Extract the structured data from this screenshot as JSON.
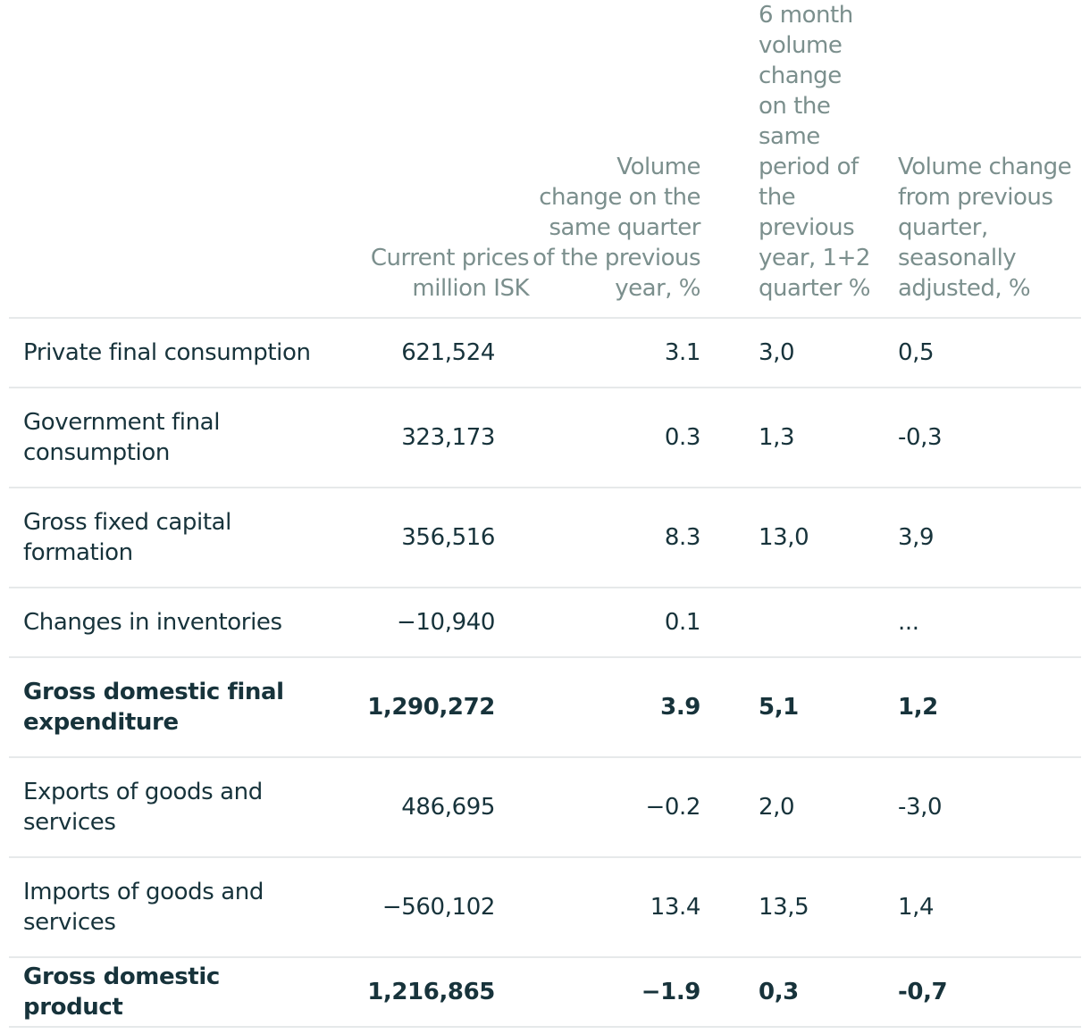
{
  "table": {
    "headers": [
      "",
      "Current prices million ISK",
      "Volume change on the same quarter of the previous year, %",
      "6 month volume change on the same period of the previous year, 1+2 quarter %",
      "Volume change from previous quarter, seasonally adjusted, %"
    ],
    "rows": [
      {
        "label": "Private final consumption",
        "current": "621,524",
        "yoy": "3.1",
        "six_month": "3,0",
        "qoq": "0,5",
        "bold": false
      },
      {
        "label": "Government final consumption",
        "current": "323,173",
        "yoy": "0.3",
        "six_month": "1,3",
        "qoq": "-0,3",
        "bold": false
      },
      {
        "label": "Gross fixed capital formation",
        "current": "356,516",
        "yoy": "8.3",
        "six_month": "13,0",
        "qoq": "3,9",
        "bold": false
      },
      {
        "label": "Changes in inventories",
        "current": "−10,940",
        "yoy": "0.1",
        "six_month": "",
        "qoq": "...",
        "bold": false
      },
      {
        "label": "Gross domestic final expenditure",
        "current": "1,290,272",
        "yoy": "3.9",
        "six_month": "5,1",
        "qoq": "1,2",
        "bold": true
      },
      {
        "label": "Exports of goods and services",
        "current": "486,695",
        "yoy": "−0.2",
        "six_month": "2,0",
        "qoq": "-3,0",
        "bold": false
      },
      {
        "label": "Imports of goods and services",
        "current": "−560,102",
        "yoy": "13.4",
        "six_month": "13,5",
        "qoq": "1,4",
        "bold": false
      },
      {
        "label": "Gross domestic product",
        "current": "1,216,865",
        "yoy": "−1.9",
        "six_month": "0,3",
        "qoq": "-0,7",
        "bold": true
      }
    ]
  }
}
